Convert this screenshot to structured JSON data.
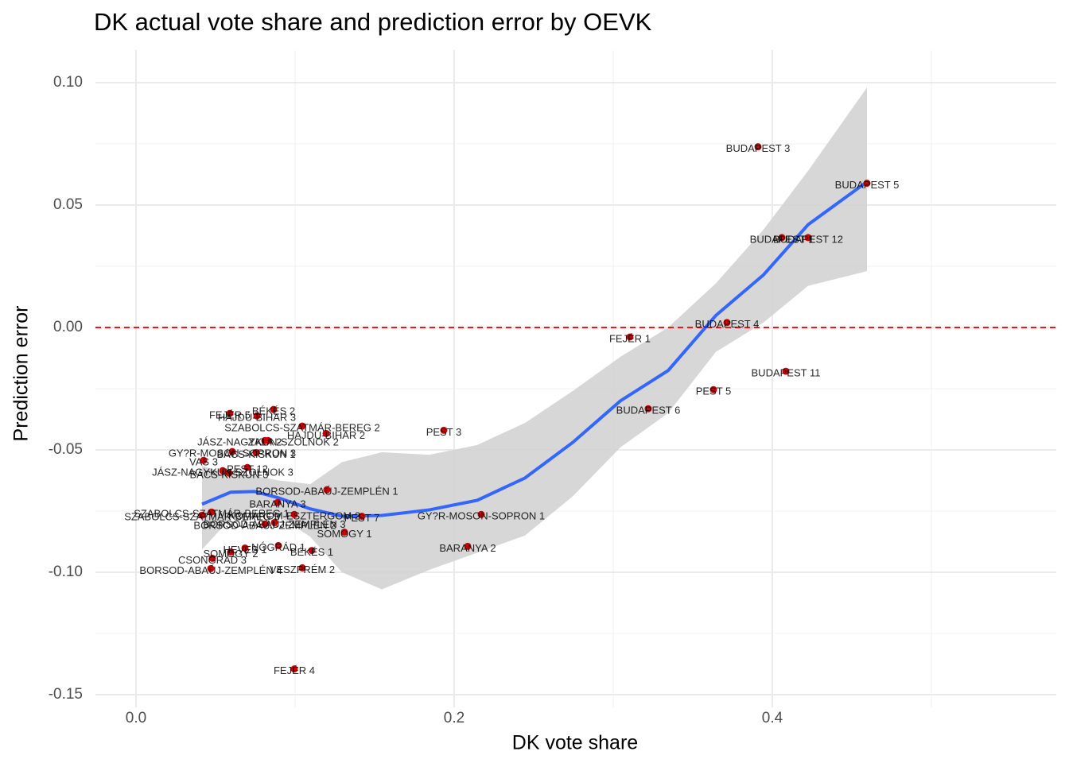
{
  "chart_data": {
    "type": "scatter",
    "title": "DK actual vote share and prediction error by OEVK",
    "xlabel": "DK vote share",
    "ylabel": "Prediction error",
    "xlim": [
      -0.0255,
      0.5785
    ],
    "ylim": [
      -0.1552,
      0.1133
    ],
    "xticks": [
      {
        "value": 0,
        "label": "0.0"
      },
      0.2,
      0.4
    ],
    "yticks": [
      {
        "value": 0.1,
        "label": "0.10"
      },
      0.05,
      {
        "value": 0,
        "label": "0.00"
      },
      -0.05,
      {
        "value": -0.1,
        "label": "-0.10"
      },
      -0.15
    ],
    "xminor": [
      0.1,
      0.3,
      0.5
    ],
    "yminor": [
      0.075,
      0.025,
      -0.025,
      -0.075,
      -0.125
    ],
    "grid": true,
    "hline": {
      "y": 0,
      "color": "#e41a1c"
    },
    "points": {
      "color": "#cc0000",
      "labels": [
        "BUDAPEST 3",
        "BUDAPEST 5",
        "BUDAPEST 1",
        "BUDAPEST 12",
        "BUDAPEST 4",
        "FEJÉR 1",
        "BUDAPEST 11",
        "PEST 5",
        "BUDAPEST 6",
        "PEST 3",
        "BÉKÉS 2",
        "FEJÉR 5",
        "HAJDÚ-BIHAR 3",
        "SZABOLCS-SZATMÁR-BEREG 2",
        "HAJDÚ-BIHAR 2",
        "ZALA 2",
        "JÁSZ-NAGYKUN-SZOLNOK 2",
        "GY?R-MOSON-SOPRON 3",
        "BÁCS-KISKUN 1",
        "VAS 3",
        "PEST 12",
        "JÁSZ-NAGYKUN-SZOLNOK 3",
        "BÁCS-KISKUN 3",
        "BORSOD-ABAÚJ-ZEMPLÉN 1",
        "BARANYA 3",
        "KOMÁROM-ESZTERGOM 2",
        "PEST 7",
        "GY?R-MOSON-SOPRON 1",
        "SZABOLCS-SZATMÁR-BEREG 1",
        "SZABOLCS-SZATMÁR-BEREG 3",
        "BORSOD-ABAÚJ-ZEMPLÉN 2",
        "BORSOD-ABAÚJ-ZEMPLÉN 3",
        "SOMOGY 1",
        "BARANYA 2",
        "NÓGRÁD 1",
        "BÉKÉS 1",
        "HEVES 1",
        "SOMOGY 2",
        "CSONGRÁD 3",
        "BORSOD-ABAÚJ-ZEMPLÉN 4",
        "VESZPRÉM 2",
        "FEJÉR 4"
      ],
      "x": [
        0.391,
        0.4595,
        0.406,
        0.4225,
        0.3715,
        0.3105,
        0.4085,
        0.363,
        0.322,
        0.1935,
        0.0865,
        0.059,
        0.076,
        0.1045,
        0.1195,
        0.081,
        0.083,
        0.0605,
        0.0755,
        0.0425,
        0.07,
        0.0545,
        0.0585,
        0.12,
        0.089,
        0.0995,
        0.142,
        0.217,
        0.0475,
        0.0415,
        0.081,
        0.087,
        0.131,
        0.2085,
        0.0895,
        0.1105,
        0.0685,
        0.0595,
        0.048,
        0.047,
        0.1045,
        0.0995
      ],
      "values": [
        0.0738,
        0.0589,
        0.0367,
        0.0367,
        0.002,
        -0.0039,
        -0.0179,
        -0.0254,
        -0.0332,
        -0.042,
        -0.0335,
        -0.0351,
        -0.0361,
        -0.0403,
        -0.0433,
        -0.0462,
        -0.0462,
        -0.0507,
        -0.0511,
        -0.0543,
        -0.0572,
        -0.0585,
        -0.0595,
        -0.0663,
        -0.0715,
        -0.0764,
        -0.0771,
        -0.0764,
        -0.0754,
        -0.0767,
        -0.0803,
        -0.0797,
        -0.0836,
        -0.0894,
        -0.0891,
        -0.0911,
        -0.0901,
        -0.0917,
        -0.0943,
        -0.0985,
        -0.0982,
        -0.1395
      ]
    },
    "smooth": {
      "color": "#3366ff",
      "band_color": "#d3d3d3",
      "x": [
        0.0415,
        0.0595,
        0.0745,
        0.0895,
        0.1095,
        0.1295,
        0.1545,
        0.1845,
        0.2145,
        0.2445,
        0.2745,
        0.3045,
        0.3345,
        0.3645,
        0.3945,
        0.4225,
        0.4595
      ],
      "values": [
        -0.0722,
        -0.0673,
        -0.067,
        -0.0696,
        -0.0741,
        -0.0771,
        -0.0768,
        -0.0745,
        -0.0706,
        -0.0615,
        -0.047,
        -0.03,
        -0.0176,
        0.0049,
        0.0215,
        0.042,
        0.0595
      ],
      "upper": [
        -0.0566,
        -0.06,
        -0.0605,
        -0.0625,
        -0.064,
        -0.055,
        -0.051,
        -0.052,
        -0.048,
        -0.039,
        -0.026,
        -0.012,
        0.0,
        0.018,
        0.04,
        0.064,
        0.098
      ],
      "lower": [
        -0.0907,
        -0.078,
        -0.0735,
        -0.077,
        -0.0855,
        -0.1,
        -0.107,
        -0.099,
        -0.092,
        -0.085,
        -0.069,
        -0.049,
        -0.035,
        -0.01,
        0.002,
        0.017,
        0.023
      ]
    }
  }
}
